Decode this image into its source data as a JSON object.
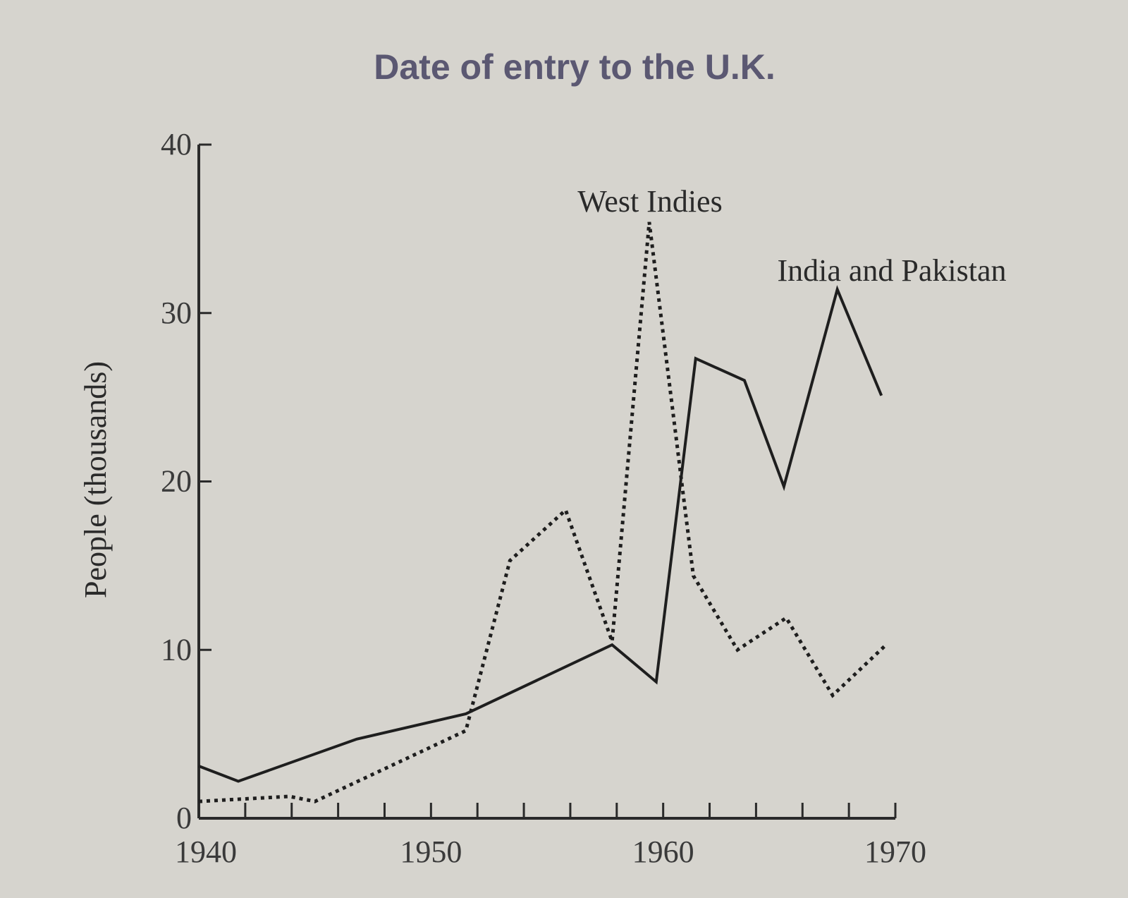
{
  "chart_data": {
    "type": "line",
    "title": "Date of entry to the U.K.",
    "xlabel": "",
    "ylabel": "People (thousands)",
    "xlim": [
      1940,
      1970
    ],
    "ylim": [
      0,
      40
    ],
    "x_ticks": [
      "1940",
      "1950",
      "1960",
      "1970"
    ],
    "y_ticks": [
      "0",
      "10",
      "20",
      "30",
      "40"
    ],
    "grid": false,
    "legend": "inline labels",
    "series": [
      {
        "name": "India and Pakistan",
        "style": "solid",
        "color": "#1e1e1e",
        "x": [
          1940,
          1941.7,
          1946.8,
          1951.5,
          1957.8,
          1959.7,
          1961.4,
          1963.5,
          1965.2,
          1967.5,
          1969.4
        ],
        "y": [
          3.1,
          2.2,
          4.7,
          6.2,
          10.3,
          8.1,
          27.3,
          26.0,
          19.7,
          31.4,
          25.1
        ]
      },
      {
        "name": "West Indies",
        "style": "dotted",
        "color": "#1e1e1e",
        "x": [
          1940,
          1943.9,
          1945,
          1951.5,
          1953.4,
          1955.8,
          1957.8,
          1959.4,
          1961.3,
          1963.2,
          1965.3,
          1967.3,
          1969.6
        ],
        "y": [
          1.0,
          1.3,
          1.0,
          5.2,
          15.3,
          18.3,
          10.5,
          35.4,
          14.4,
          10.0,
          11.9,
          7.3,
          10.3
        ]
      }
    ]
  }
}
